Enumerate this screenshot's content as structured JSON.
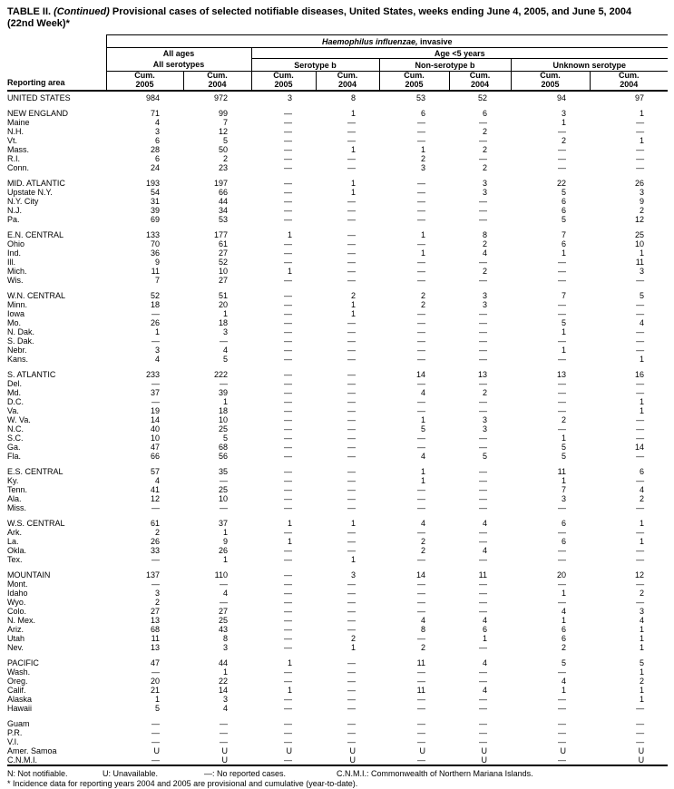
{
  "colors": {
    "background": "#ffffff",
    "text": "#000000",
    "rule": "#000000"
  },
  "title": {
    "part_label": "TABLE II. ",
    "part_continued": "(Continued) ",
    "part_rest": "Provisional cases of selected notifiable diseases, United States, weeks ending June 4, 2005, and June 5, 2004",
    "line2": "(22nd Week)*"
  },
  "table": {
    "reporting_area_label": "Reporting area",
    "disease_italic": "Haemophilus influenzae,",
    "disease_rest": " invasive",
    "all_ages": "All ages",
    "all_serotypes": "All serotypes",
    "age_under_5": "Age <5 years",
    "serotype_b": "Serotype b",
    "non_serotype_b": "Non-serotype b",
    "unknown_serotype": "Unknown serotype",
    "cum_headers": [
      {
        "label": "Cum.",
        "year": "2005"
      },
      {
        "label": "Cum.",
        "year": "2004"
      },
      {
        "label": "Cum.",
        "year": "2005"
      },
      {
        "label": "Cum.",
        "year": "2004"
      },
      {
        "label": "Cum.",
        "year": "2005"
      },
      {
        "label": "Cum.",
        "year": "2004"
      },
      {
        "label": "Cum.",
        "year": "2005"
      },
      {
        "label": "Cum.",
        "year": "2004"
      }
    ],
    "rows": [
      {
        "area": "UNITED STATES",
        "values": [
          "984",
          "972",
          "3",
          "8",
          "53",
          "52",
          "94",
          "97"
        ]
      },
      {
        "area": "NEW ENGLAND",
        "gap": true,
        "values": [
          "71",
          "99",
          "—",
          "1",
          "6",
          "6",
          "3",
          "1"
        ]
      },
      {
        "area": "Maine",
        "values": [
          "4",
          "7",
          "—",
          "—",
          "—",
          "—",
          "1",
          "—"
        ]
      },
      {
        "area": "N.H.",
        "values": [
          "3",
          "12",
          "—",
          "—",
          "—",
          "2",
          "—",
          "—"
        ]
      },
      {
        "area": "Vt.",
        "values": [
          "6",
          "5",
          "—",
          "—",
          "—",
          "—",
          "2",
          "1"
        ]
      },
      {
        "area": "Mass.",
        "values": [
          "28",
          "50",
          "—",
          "1",
          "1",
          "2",
          "—",
          "—"
        ]
      },
      {
        "area": "R.I.",
        "values": [
          "6",
          "2",
          "—",
          "—",
          "2",
          "—",
          "—",
          "—"
        ]
      },
      {
        "area": "Conn.",
        "values": [
          "24",
          "23",
          "—",
          "—",
          "3",
          "2",
          "—",
          "—"
        ]
      },
      {
        "area": "MID. ATLANTIC",
        "gap": true,
        "values": [
          "193",
          "197",
          "—",
          "1",
          "—",
          "3",
          "22",
          "26"
        ]
      },
      {
        "area": "Upstate N.Y.",
        "values": [
          "54",
          "66",
          "—",
          "1",
          "—",
          "3",
          "5",
          "3"
        ]
      },
      {
        "area": "N.Y. City",
        "values": [
          "31",
          "44",
          "—",
          "—",
          "—",
          "—",
          "6",
          "9"
        ]
      },
      {
        "area": "N.J.",
        "values": [
          "39",
          "34",
          "—",
          "—",
          "—",
          "—",
          "6",
          "2"
        ]
      },
      {
        "area": "Pa.",
        "values": [
          "69",
          "53",
          "—",
          "—",
          "—",
          "—",
          "5",
          "12"
        ]
      },
      {
        "area": "E.N. CENTRAL",
        "gap": true,
        "values": [
          "133",
          "177",
          "1",
          "—",
          "1",
          "8",
          "7",
          "25"
        ]
      },
      {
        "area": "Ohio",
        "values": [
          "70",
          "61",
          "—",
          "—",
          "—",
          "2",
          "6",
          "10"
        ]
      },
      {
        "area": "Ind.",
        "values": [
          "36",
          "27",
          "—",
          "—",
          "1",
          "4",
          "1",
          "1"
        ]
      },
      {
        "area": "Ill.",
        "values": [
          "9",
          "52",
          "—",
          "—",
          "—",
          "—",
          "—",
          "11"
        ]
      },
      {
        "area": "Mich.",
        "values": [
          "11",
          "10",
          "1",
          "—",
          "—",
          "2",
          "—",
          "3"
        ]
      },
      {
        "area": "Wis.",
        "values": [
          "7",
          "27",
          "—",
          "—",
          "—",
          "—",
          "—",
          "—"
        ]
      },
      {
        "area": "W.N. CENTRAL",
        "gap": true,
        "values": [
          "52",
          "51",
          "—",
          "2",
          "2",
          "3",
          "7",
          "5"
        ]
      },
      {
        "area": "Minn.",
        "values": [
          "18",
          "20",
          "—",
          "1",
          "2",
          "3",
          "—",
          "—"
        ]
      },
      {
        "area": "Iowa",
        "values": [
          "—",
          "1",
          "—",
          "1",
          "—",
          "—",
          "—",
          "—"
        ]
      },
      {
        "area": "Mo.",
        "values": [
          "26",
          "18",
          "—",
          "—",
          "—",
          "—",
          "5",
          "4"
        ]
      },
      {
        "area": "N. Dak.",
        "values": [
          "1",
          "3",
          "—",
          "—",
          "—",
          "—",
          "1",
          "—"
        ]
      },
      {
        "area": "S. Dak.",
        "values": [
          "—",
          "—",
          "—",
          "—",
          "—",
          "—",
          "—",
          "—"
        ]
      },
      {
        "area": "Nebr.",
        "values": [
          "3",
          "4",
          "—",
          "—",
          "—",
          "—",
          "1",
          "—"
        ]
      },
      {
        "area": "Kans.",
        "values": [
          "4",
          "5",
          "—",
          "—",
          "—",
          "—",
          "—",
          "1"
        ]
      },
      {
        "area": "S. ATLANTIC",
        "gap": true,
        "values": [
          "233",
          "222",
          "—",
          "—",
          "14",
          "13",
          "13",
          "16"
        ]
      },
      {
        "area": "Del.",
        "values": [
          "—",
          "—",
          "—",
          "—",
          "—",
          "—",
          "—",
          "—"
        ]
      },
      {
        "area": "Md.",
        "values": [
          "37",
          "39",
          "—",
          "—",
          "4",
          "2",
          "—",
          "—"
        ]
      },
      {
        "area": "D.C.",
        "values": [
          "—",
          "1",
          "—",
          "—",
          "—",
          "—",
          "—",
          "1"
        ]
      },
      {
        "area": "Va.",
        "values": [
          "19",
          "18",
          "—",
          "—",
          "—",
          "—",
          "—",
          "1"
        ]
      },
      {
        "area": "W. Va.",
        "values": [
          "14",
          "10",
          "—",
          "—",
          "1",
          "3",
          "2",
          "—"
        ]
      },
      {
        "area": "N.C.",
        "values": [
          "40",
          "25",
          "—",
          "—",
          "5",
          "3",
          "—",
          "—"
        ]
      },
      {
        "area": "S.C.",
        "values": [
          "10",
          "5",
          "—",
          "—",
          "—",
          "—",
          "1",
          "—"
        ]
      },
      {
        "area": "Ga.",
        "values": [
          "47",
          "68",
          "—",
          "—",
          "—",
          "—",
          "5",
          "14"
        ]
      },
      {
        "area": "Fla.",
        "values": [
          "66",
          "56",
          "—",
          "—",
          "4",
          "5",
          "5",
          "—"
        ]
      },
      {
        "area": "E.S. CENTRAL",
        "gap": true,
        "values": [
          "57",
          "35",
          "—",
          "—",
          "1",
          "—",
          "11",
          "6"
        ]
      },
      {
        "area": "Ky.",
        "values": [
          "4",
          "—",
          "—",
          "—",
          "1",
          "—",
          "1",
          "—"
        ]
      },
      {
        "area": "Tenn.",
        "values": [
          "41",
          "25",
          "—",
          "—",
          "—",
          "—",
          "7",
          "4"
        ]
      },
      {
        "area": "Ala.",
        "values": [
          "12",
          "10",
          "—",
          "—",
          "—",
          "—",
          "3",
          "2"
        ]
      },
      {
        "area": "Miss.",
        "values": [
          "—",
          "—",
          "—",
          "—",
          "—",
          "—",
          "—",
          "—"
        ]
      },
      {
        "area": "W.S. CENTRAL",
        "gap": true,
        "values": [
          "61",
          "37",
          "1",
          "1",
          "4",
          "4",
          "6",
          "1"
        ]
      },
      {
        "area": "Ark.",
        "values": [
          "2",
          "1",
          "—",
          "—",
          "—",
          "—",
          "—",
          "—"
        ]
      },
      {
        "area": "La.",
        "values": [
          "26",
          "9",
          "1",
          "—",
          "2",
          "—",
          "6",
          "1"
        ]
      },
      {
        "area": "Okla.",
        "values": [
          "33",
          "26",
          "—",
          "—",
          "2",
          "4",
          "—",
          "—"
        ]
      },
      {
        "area": "Tex.",
        "values": [
          "—",
          "1",
          "—",
          "1",
          "—",
          "—",
          "—",
          "—"
        ]
      },
      {
        "area": "MOUNTAIN",
        "gap": true,
        "values": [
          "137",
          "110",
          "—",
          "3",
          "14",
          "11",
          "20",
          "12"
        ]
      },
      {
        "area": "Mont.",
        "values": [
          "—",
          "—",
          "—",
          "—",
          "—",
          "—",
          "—",
          "—"
        ]
      },
      {
        "area": "Idaho",
        "values": [
          "3",
          "4",
          "—",
          "—",
          "—",
          "—",
          "1",
          "2"
        ]
      },
      {
        "area": "Wyo.",
        "values": [
          "2",
          "—",
          "—",
          "—",
          "—",
          "—",
          "—",
          "—"
        ]
      },
      {
        "area": "Colo.",
        "values": [
          "27",
          "27",
          "—",
          "—",
          "—",
          "—",
          "4",
          "3"
        ]
      },
      {
        "area": "N. Mex.",
        "values": [
          "13",
          "25",
          "—",
          "—",
          "4",
          "4",
          "1",
          "4"
        ]
      },
      {
        "area": "Ariz.",
        "values": [
          "68",
          "43",
          "—",
          "—",
          "8",
          "6",
          "6",
          "1"
        ]
      },
      {
        "area": "Utah",
        "values": [
          "11",
          "8",
          "—",
          "2",
          "—",
          "1",
          "6",
          "1"
        ]
      },
      {
        "area": "Nev.",
        "values": [
          "13",
          "3",
          "—",
          "1",
          "2",
          "—",
          "2",
          "1"
        ]
      },
      {
        "area": "PACIFIC",
        "gap": true,
        "values": [
          "47",
          "44",
          "1",
          "—",
          "11",
          "4",
          "5",
          "5"
        ]
      },
      {
        "area": "Wash.",
        "values": [
          "—",
          "1",
          "—",
          "—",
          "—",
          "—",
          "—",
          "1"
        ]
      },
      {
        "area": "Oreg.",
        "values": [
          "20",
          "22",
          "—",
          "—",
          "—",
          "—",
          "4",
          "2"
        ]
      },
      {
        "area": "Calif.",
        "values": [
          "21",
          "14",
          "1",
          "—",
          "11",
          "4",
          "1",
          "1"
        ]
      },
      {
        "area": "Alaska",
        "values": [
          "1",
          "3",
          "—",
          "—",
          "—",
          "—",
          "—",
          "1"
        ]
      },
      {
        "area": "Hawaii",
        "values": [
          "5",
          "4",
          "—",
          "—",
          "—",
          "—",
          "—",
          "—"
        ]
      },
      {
        "area": "Guam",
        "gap": true,
        "values": [
          "—",
          "—",
          "—",
          "—",
          "—",
          "—",
          "—",
          "—"
        ]
      },
      {
        "area": "P.R.",
        "values": [
          "—",
          "—",
          "—",
          "—",
          "—",
          "—",
          "—",
          "—"
        ]
      },
      {
        "area": "V.I.",
        "values": [
          "—",
          "—",
          "—",
          "—",
          "—",
          "—",
          "—",
          "—"
        ]
      },
      {
        "area": "Amer. Samoa",
        "values": [
          "U",
          "U",
          "U",
          "U",
          "U",
          "U",
          "U",
          "U"
        ]
      },
      {
        "area": "C.N.M.I.",
        "values": [
          "—",
          "U",
          "—",
          "U",
          "—",
          "U",
          "—",
          "U"
        ]
      }
    ]
  },
  "footnotes": {
    "n": "N: Not notifiable.",
    "u": "U: Unavailable.",
    "dash": "—: No reported cases.",
    "cnmi": "C.N.M.I.: Commonwealth of Northern Mariana Islands.",
    "line2": "* Incidence data for reporting years 2004 and 2005 are provisional and cumulative (year-to-date)."
  }
}
